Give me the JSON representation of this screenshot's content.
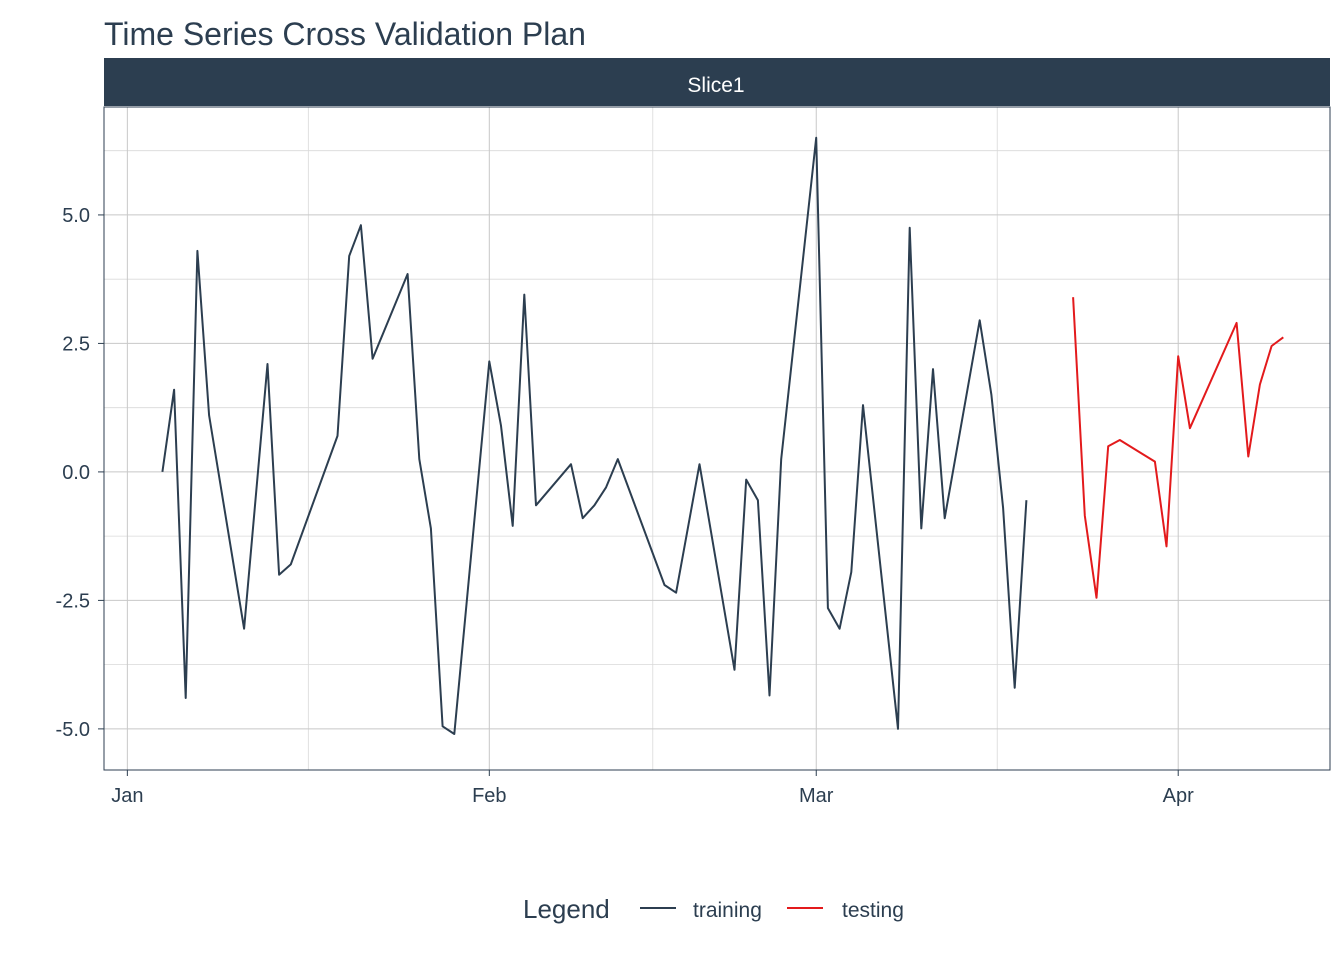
{
  "chart_data": {
    "type": "line",
    "title": "Time Series Cross Validation Plan",
    "facet": "Slice1",
    "xlabel": "",
    "ylabel": "",
    "x_tick_labels": [
      "Jan",
      "Feb",
      "Mar",
      "Apr"
    ],
    "x_tick_dates": [
      "2021-01-01",
      "2021-02-01",
      "2021-03-01",
      "2021-04-01"
    ],
    "xlim": [
      "2020-12-30",
      "2021-04-14"
    ],
    "y_ticks": [
      -5.0,
      -2.5,
      0.0,
      2.5,
      5.0
    ],
    "y_tick_labels": [
      "-5.0",
      "-2.5",
      "0.0",
      "2.5",
      "5.0"
    ],
    "ylim": [
      -5.8,
      7.1
    ],
    "grid": true,
    "legend": {
      "title": "Legend",
      "position": "bottom"
    },
    "series": [
      {
        "name": "training",
        "color": "#2c3e50",
        "points": [
          [
            "2021-01-04",
            0.0
          ],
          [
            "2021-01-05",
            1.6
          ],
          [
            "2021-01-06",
            -4.4
          ],
          [
            "2021-01-07",
            4.3
          ],
          [
            "2021-01-08",
            1.1
          ],
          [
            "2021-01-11",
            -3.05
          ],
          [
            "2021-01-13",
            2.1
          ],
          [
            "2021-01-14",
            -2.0
          ],
          [
            "2021-01-15",
            -1.8
          ],
          [
            "2021-01-19",
            0.7
          ],
          [
            "2021-01-20",
            4.2
          ],
          [
            "2021-01-21",
            4.8
          ],
          [
            "2021-01-22",
            2.2
          ],
          [
            "2021-01-25",
            3.85
          ],
          [
            "2021-01-26",
            0.25
          ],
          [
            "2021-01-27",
            -1.1
          ],
          [
            "2021-01-28",
            -4.95
          ],
          [
            "2021-01-29",
            -5.1
          ],
          [
            "2021-02-01",
            2.15
          ],
          [
            "2021-02-02",
            0.9
          ],
          [
            "2021-02-03",
            -1.05
          ],
          [
            "2021-02-04",
            3.45
          ],
          [
            "2021-02-05",
            -0.65
          ],
          [
            "2021-02-08",
            0.15
          ],
          [
            "2021-02-09",
            -0.9
          ],
          [
            "2021-02-10",
            -0.65
          ],
          [
            "2021-02-11",
            -0.3
          ],
          [
            "2021-02-12",
            0.25
          ],
          [
            "2021-02-16",
            -2.2
          ],
          [
            "2021-02-17",
            -2.35
          ],
          [
            "2021-02-19",
            0.15
          ],
          [
            "2021-02-22",
            -3.85
          ],
          [
            "2021-02-23",
            -0.15
          ],
          [
            "2021-02-24",
            -0.55
          ],
          [
            "2021-02-25",
            -4.35
          ],
          [
            "2021-02-26",
            0.25
          ],
          [
            "2021-03-01",
            6.5
          ],
          [
            "2021-03-02",
            -2.65
          ],
          [
            "2021-03-03",
            -3.05
          ],
          [
            "2021-03-04",
            -1.95
          ],
          [
            "2021-03-05",
            1.3
          ],
          [
            "2021-03-08",
            -5.0
          ],
          [
            "2021-03-09",
            4.75
          ],
          [
            "2021-03-10",
            -1.1
          ],
          [
            "2021-03-11",
            2.0
          ],
          [
            "2021-03-12",
            -0.9
          ],
          [
            "2021-03-15",
            2.95
          ],
          [
            "2021-03-16",
            1.5
          ],
          [
            "2021-03-17",
            -0.7
          ],
          [
            "2021-03-18",
            -4.2
          ],
          [
            "2021-03-19",
            -0.55
          ]
        ]
      },
      {
        "name": "testing",
        "color": "#e31a1c",
        "points": [
          [
            "2021-03-23",
            3.4
          ],
          [
            "2021-03-24",
            -0.85
          ],
          [
            "2021-03-25",
            -2.45
          ],
          [
            "2021-03-26",
            0.5
          ],
          [
            "2021-03-27",
            0.62
          ],
          [
            "2021-03-30",
            0.2
          ],
          [
            "2021-03-31",
            -1.45
          ],
          [
            "2021-04-01",
            2.25
          ],
          [
            "2021-04-02",
            0.85
          ],
          [
            "2021-04-06",
            2.9
          ],
          [
            "2021-04-07",
            0.3
          ],
          [
            "2021-04-08",
            1.7
          ],
          [
            "2021-04-09",
            2.45
          ],
          [
            "2021-04-10",
            2.62
          ]
        ]
      }
    ]
  }
}
